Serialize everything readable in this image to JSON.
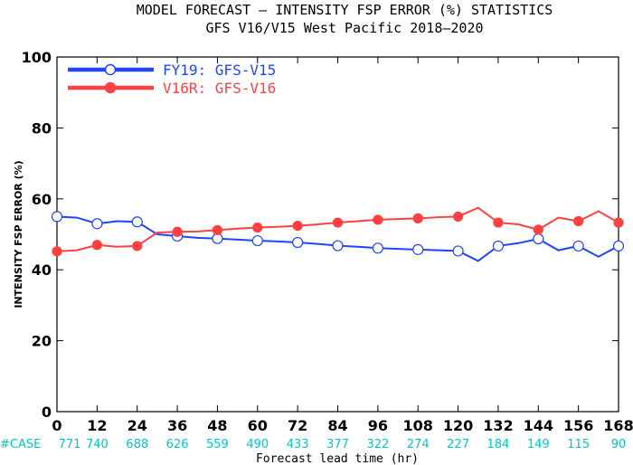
{
  "chart_data": {
    "type": "line",
    "title": "MODEL FORECAST — INTENSITY FSP ERROR (%) STATISTICS",
    "subtitle": "GFS V16/V15 West Pacific 2018—2020",
    "xlabel": "Forecast lead time (hr)",
    "ylabel": "INTENSITY FSP ERROR (%)",
    "xlim": [
      0,
      168
    ],
    "ylim": [
      0,
      100
    ],
    "xticks": [
      0,
      12,
      24,
      36,
      48,
      60,
      72,
      84,
      96,
      108,
      120,
      132,
      144,
      156,
      168
    ],
    "yticks": [
      0,
      20,
      40,
      60,
      80,
      100
    ],
    "case_label": "#CASE",
    "case_counts": [
      "771",
      "740",
      "688",
      "626",
      "559",
      "490",
      "433",
      "377",
      "322",
      "274",
      "227",
      "184",
      "149",
      "115",
      "90"
    ],
    "x": [
      0,
      6,
      12,
      18,
      24,
      30,
      36,
      42,
      48,
      54,
      60,
      66,
      72,
      78,
      84,
      90,
      96,
      102,
      108,
      114,
      120,
      126,
      132,
      138,
      144,
      150,
      156,
      162,
      168
    ],
    "series": [
      {
        "name": "FY19: GFS-V15",
        "color": "#1e46ff",
        "marker": "open-circle",
        "values": [
          55.0,
          54.7,
          53.0,
          53.7,
          53.5,
          50.0,
          49.5,
          49.0,
          48.8,
          48.5,
          48.2,
          48.0,
          47.7,
          47.3,
          46.8,
          46.5,
          46.1,
          45.9,
          45.7,
          45.5,
          45.3,
          42.5,
          46.7,
          47.5,
          48.7,
          45.5,
          46.7,
          43.7,
          46.7
        ]
      },
      {
        "name": "V16R: GFS-V16",
        "color": "#ff4040",
        "marker": "filled-circle",
        "values": [
          45.2,
          45.5,
          47.0,
          46.5,
          46.7,
          50.5,
          50.7,
          50.8,
          51.2,
          51.6,
          51.9,
          52.1,
          52.4,
          52.8,
          53.3,
          53.7,
          54.1,
          54.3,
          54.5,
          54.8,
          55.0,
          57.5,
          53.3,
          52.8,
          51.3,
          54.7,
          53.7,
          56.5,
          53.3
        ]
      }
    ],
    "legend": "top-left",
    "grid": false
  }
}
